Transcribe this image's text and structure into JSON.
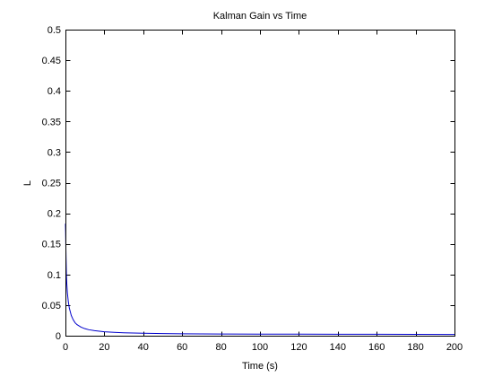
{
  "chart_data": {
    "type": "line",
    "title": "Kalman Gain vs Time",
    "xlabel": "Time (s)",
    "ylabel": "L",
    "xlim": [
      0,
      200
    ],
    "ylim": [
      0,
      0.5
    ],
    "xticks": [
      0,
      20,
      40,
      60,
      80,
      100,
      120,
      140,
      160,
      180,
      200
    ],
    "yticks": [
      0,
      0.05,
      0.1,
      0.15,
      0.2,
      0.25,
      0.3,
      0.35,
      0.4,
      0.45,
      0.5
    ],
    "xtick_labels": [
      "0",
      "20",
      "40",
      "60",
      "80",
      "100",
      "120",
      "140",
      "160",
      "180",
      "200"
    ],
    "ytick_labels": [
      "0",
      "0.05",
      "0.1",
      "0.15",
      "0.2",
      "0.25",
      "0.3",
      "0.35",
      "0.4",
      "0.45",
      "0.5"
    ],
    "grid": false,
    "series": [
      {
        "color": "#0000cc",
        "x": [
          0,
          0.1,
          0.2,
          0.3,
          0.5,
          0.7,
          1,
          1.5,
          2,
          3,
          4,
          5,
          6,
          8,
          10,
          12,
          15,
          20,
          25,
          30,
          40,
          50,
          60,
          70,
          80,
          100,
          120,
          140,
          160,
          180,
          200
        ],
        "y": [
          0.183,
          0.17,
          0.15,
          0.13,
          0.1,
          0.085,
          0.07,
          0.055,
          0.045,
          0.033,
          0.026,
          0.021,
          0.018,
          0.014,
          0.0115,
          0.0098,
          0.0082,
          0.0065,
          0.0055,
          0.0048,
          0.004,
          0.0035,
          0.0032,
          0.003,
          0.0028,
          0.0026,
          0.0025,
          0.0024,
          0.0023,
          0.0022,
          0.0021
        ]
      }
    ]
  }
}
